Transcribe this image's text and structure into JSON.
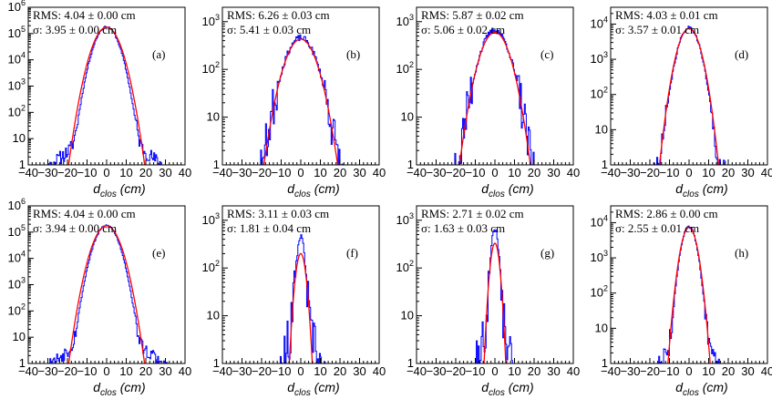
{
  "figure": {
    "grid": false,
    "colors": {
      "histogram": "#0000ff",
      "fit": "#ff0000",
      "axis": "#000000"
    }
  },
  "chart_data": [
    {
      "panel": "(a)",
      "type": "line",
      "yscale": "log",
      "x_range": [
        -40,
        40
      ],
      "ylim": [
        1,
        1000000
      ],
      "x_ticks": [
        "−40",
        "−30",
        "−20",
        "−10",
        "0",
        "10",
        "20",
        "30",
        "40"
      ],
      "y_ticks": [
        [
          "1",
          "1"
        ],
        [
          "10",
          "10"
        ],
        [
          "100",
          "10^2"
        ],
        [
          "1000",
          "10^3"
        ],
        [
          "10000",
          "10^4"
        ],
        [
          "100000",
          "10^5"
        ],
        [
          "1000000",
          "10^6"
        ]
      ],
      "stats": {
        "rms": "RMS: 4.04 ± 0.00 cm",
        "sigma": "σ: 3.95 ± 0.00 cm"
      },
      "xlabel_main": "d",
      "xlabel_sub": "clos",
      "xlabel_unit": " (cm)",
      "series": [
        {
          "name": "histogram",
          "color": "#0000ff",
          "peak": 180000,
          "core_sigma": 3.6,
          "tail_width": 7.0,
          "tail_level": 0.0003,
          "noise": 0.35,
          "seed": 11
        },
        {
          "name": "gaussian fit",
          "color": "#ff0000",
          "peak": 175000,
          "sigma": 3.95
        }
      ]
    },
    {
      "panel": "(b)",
      "type": "line",
      "yscale": "log",
      "x_range": [
        -40,
        40
      ],
      "ylim": [
        1,
        2000
      ],
      "x_ticks": [
        "−40",
        "−30",
        "−20",
        "−10",
        "0",
        "10",
        "20",
        "30",
        "40"
      ],
      "y_ticks": [
        [
          "1",
          "1"
        ],
        [
          "10",
          "10"
        ],
        [
          "100",
          "10^2"
        ],
        [
          "1000",
          "10^3"
        ]
      ],
      "stats": {
        "rms": "RMS: 6.26 ± 0.03 cm",
        "sigma": "σ: 5.41 ± 0.03 cm"
      },
      "xlabel_main": "d",
      "xlabel_sub": "clos",
      "xlabel_unit": " (cm)",
      "series": [
        {
          "name": "histogram",
          "color": "#0000ff",
          "peak": 450,
          "core_sigma": 5.4,
          "tail_width": 6.5,
          "tail_level": 0.02,
          "noise": 0.6,
          "seed": 23
        },
        {
          "name": "gaussian fit",
          "color": "#ff0000",
          "peak": 430,
          "sigma": 5.41
        }
      ]
    },
    {
      "panel": "(c)",
      "type": "line",
      "yscale": "log",
      "x_range": [
        -40,
        40
      ],
      "ylim": [
        1,
        2000
      ],
      "x_ticks": [
        "−40",
        "−30",
        "−20",
        "−10",
        "0",
        "10",
        "20",
        "30",
        "40"
      ],
      "y_ticks": [
        [
          "1",
          "1"
        ],
        [
          "10",
          "10"
        ],
        [
          "100",
          "10^2"
        ],
        [
          "1000",
          "10^3"
        ]
      ],
      "stats": {
        "rms": "RMS: 5.87 ± 0.02 cm",
        "sigma": "σ: 5.06 ± 0.02 cm"
      },
      "xlabel_main": "d",
      "xlabel_sub": "clos",
      "xlabel_unit": " (cm)",
      "series": [
        {
          "name": "histogram",
          "color": "#0000ff",
          "peak": 650,
          "core_sigma": 5.0,
          "tail_width": 6.5,
          "tail_level": 0.015,
          "noise": 0.6,
          "seed": 37
        },
        {
          "name": "gaussian fit",
          "color": "#ff0000",
          "peak": 600,
          "sigma": 5.06
        }
      ]
    },
    {
      "panel": "(d)",
      "type": "line",
      "yscale": "log",
      "x_range": [
        -40,
        40
      ],
      "ylim": [
        1,
        30000
      ],
      "x_ticks": [
        "−40",
        "−30",
        "−20",
        "−10",
        "0",
        "10",
        "20",
        "30",
        "40"
      ],
      "y_ticks": [
        [
          "1",
          "1"
        ],
        [
          "10",
          "10"
        ],
        [
          "100",
          "10^2"
        ],
        [
          "1000",
          "10^3"
        ],
        [
          "10000",
          "10^4"
        ]
      ],
      "stats": {
        "rms": "RMS: 4.03 ± 0.01 cm",
        "sigma": "σ: 3.57 ± 0.01 cm"
      },
      "xlabel_main": "d",
      "xlabel_sub": "clos",
      "xlabel_unit": " (cm)",
      "series": [
        {
          "name": "histogram",
          "color": "#0000ff",
          "peak": 8000,
          "core_sigma": 3.4,
          "tail_width": 5.5,
          "tail_level": 0.002,
          "noise": 0.45,
          "seed": 41
        },
        {
          "name": "gaussian fit",
          "color": "#ff0000",
          "peak": 7500,
          "sigma": 3.57
        }
      ]
    },
    {
      "panel": "(e)",
      "type": "line",
      "yscale": "log",
      "x_range": [
        -40,
        40
      ],
      "ylim": [
        1,
        1000000
      ],
      "x_ticks": [
        "−40",
        "−30",
        "−20",
        "−10",
        "0",
        "10",
        "20",
        "30",
        "40"
      ],
      "y_ticks": [
        [
          "1",
          "1"
        ],
        [
          "10",
          "10"
        ],
        [
          "100",
          "10^2"
        ],
        [
          "1000",
          "10^3"
        ],
        [
          "10000",
          "10^4"
        ],
        [
          "100000",
          "10^5"
        ],
        [
          "1000000",
          "10^6"
        ]
      ],
      "stats": {
        "rms": "RMS: 4.04 ± 0.00 cm",
        "sigma": "σ: 3.94 ± 0.00 cm"
      },
      "xlabel_main": "d",
      "xlabel_sub": "clos",
      "xlabel_unit": " (cm)",
      "series": [
        {
          "name": "histogram",
          "color": "#0000ff",
          "peak": 180000,
          "core_sigma": 3.6,
          "tail_width": 7.0,
          "tail_level": 0.0003,
          "noise": 0.35,
          "seed": 53
        },
        {
          "name": "gaussian fit",
          "color": "#ff0000",
          "peak": 175000,
          "sigma": 3.94
        }
      ]
    },
    {
      "panel": "(f)",
      "type": "line",
      "yscale": "log",
      "x_range": [
        -40,
        40
      ],
      "ylim": [
        1,
        2000
      ],
      "x_ticks": [
        "−40",
        "−30",
        "−20",
        "−10",
        "0",
        "10",
        "20",
        "30",
        "40"
      ],
      "y_ticks": [
        [
          "1",
          "1"
        ],
        [
          "10",
          "10"
        ],
        [
          "100",
          "10^2"
        ],
        [
          "1000",
          "10^3"
        ]
      ],
      "stats": {
        "rms": "RMS: 3.11 ± 0.03 cm",
        "sigma": "σ: 1.81 ± 0.04 cm"
      },
      "xlabel_main": "d",
      "xlabel_sub": "clos",
      "xlabel_unit": " (cm)",
      "series": [
        {
          "name": "histogram",
          "color": "#0000ff",
          "peak": 420,
          "core_sigma": 1.4,
          "tail_width": 3.2,
          "tail_level": 0.05,
          "noise": 0.65,
          "seed": 67
        },
        {
          "name": "gaussian fit",
          "color": "#ff0000",
          "peak": 200,
          "sigma": 1.81
        }
      ]
    },
    {
      "panel": "(g)",
      "type": "line",
      "yscale": "log",
      "x_range": [
        -40,
        40
      ],
      "ylim": [
        1,
        2000
      ],
      "x_ticks": [
        "−40",
        "−30",
        "−20",
        "−10",
        "0",
        "10",
        "20",
        "30",
        "40"
      ],
      "y_ticks": [
        [
          "1",
          "1"
        ],
        [
          "10",
          "10"
        ],
        [
          "100",
          "10^2"
        ],
        [
          "1000",
          "10^3"
        ]
      ],
      "stats": {
        "rms": "RMS: 2.71 ± 0.02 cm",
        "sigma": "σ: 1.63 ± 0.03 cm"
      },
      "xlabel_main": "d",
      "xlabel_sub": "clos",
      "xlabel_unit": " (cm)",
      "series": [
        {
          "name": "histogram",
          "color": "#0000ff",
          "peak": 650,
          "core_sigma": 1.3,
          "tail_width": 2.8,
          "tail_level": 0.04,
          "noise": 0.65,
          "seed": 79
        },
        {
          "name": "gaussian fit",
          "color": "#ff0000",
          "peak": 330,
          "sigma": 1.63
        }
      ]
    },
    {
      "panel": "(h)",
      "type": "line",
      "yscale": "log",
      "x_range": [
        -40,
        40
      ],
      "ylim": [
        1,
        30000
      ],
      "x_ticks": [
        "−40",
        "−30",
        "−20",
        "−10",
        "0",
        "10",
        "20",
        "30",
        "40"
      ],
      "y_ticks": [
        [
          "1",
          "1"
        ],
        [
          "10",
          "10"
        ],
        [
          "100",
          "10^2"
        ],
        [
          "1000",
          "10^3"
        ],
        [
          "10000",
          "10^4"
        ]
      ],
      "stats": {
        "rms": "RMS: 2.86 ± 0.00 cm",
        "sigma": "σ: 2.55 ± 0.01 cm"
      },
      "xlabel_main": "d",
      "xlabel_sub": "clos",
      "xlabel_unit": " (cm)",
      "series": [
        {
          "name": "histogram",
          "color": "#0000ff",
          "peak": 7800,
          "core_sigma": 2.4,
          "tail_width": 4.2,
          "tail_level": 0.004,
          "noise": 0.45,
          "seed": 83
        },
        {
          "name": "gaussian fit",
          "color": "#ff0000",
          "peak": 7500,
          "sigma": 2.55
        }
      ]
    }
  ]
}
